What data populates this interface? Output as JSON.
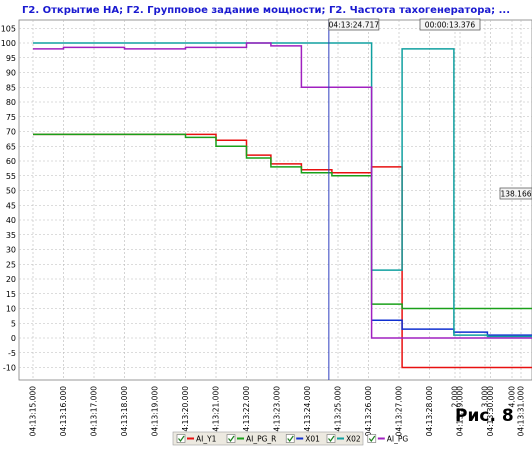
{
  "chart_data": {
    "type": "line",
    "title": "Г2. Открытие НА; Г2. Групповое задание мощности; Г2. Частота тахогенератора; ...",
    "y_ticks": [
      105,
      100,
      95,
      90,
      85,
      80,
      75,
      70,
      65,
      60,
      55,
      50,
      45,
      40,
      35,
      30,
      25,
      20,
      15,
      10,
      5,
      0,
      -5,
      -10
    ],
    "ylim": [
      -12,
      107
    ],
    "xlim": [
      0,
      17.6
    ],
    "x_ticks": [
      {
        "x": 0,
        "label": "04:13:15.000"
      },
      {
        "x": 1,
        "label": "04:13:16.000"
      },
      {
        "x": 2,
        "label": "04:13:17.000"
      },
      {
        "x": 3,
        "label": "04:13:18.000"
      },
      {
        "x": 4,
        "label": "04:13:19.000"
      },
      {
        "x": 5,
        "label": "04:13:20.000"
      },
      {
        "x": 6,
        "label": "04:13:21.000"
      },
      {
        "x": 7,
        "label": "04:13:22.000"
      },
      {
        "x": 8,
        "label": "04:13:23.000"
      },
      {
        "x": 9,
        "label": "04:13:24.000"
      },
      {
        "x": 10,
        "label": "04:13:25.000"
      },
      {
        "x": 11,
        "label": "04:13:26.000"
      },
      {
        "x": 12,
        "label": "04:13:27.000"
      },
      {
        "x": 13,
        "label": "04:13:28.000"
      },
      {
        "x": 14,
        "label": "04:13:29.000"
      },
      {
        "x": 15,
        "label": "04:13:30.000"
      },
      {
        "x": 16,
        "label": "04:13:31.000"
      },
      {
        "x": 16.1,
        "label": "2.000"
      },
      {
        "x": 16.2,
        "label": "3.000"
      },
      {
        "x": 16.3,
        "label": "4.000"
      }
    ],
    "cursor": {
      "x": 9.7,
      "label": "04:13:24.717"
    },
    "delta_label": "00:00:13.376",
    "value_label": "138.166",
    "series": [
      {
        "name": "AI_Y1",
        "color": "#e81010",
        "points": [
          [
            0,
            69
          ],
          [
            5,
            69
          ],
          [
            5,
            69
          ],
          [
            6,
            69
          ],
          [
            6,
            67
          ],
          [
            7,
            67
          ],
          [
            7,
            62
          ],
          [
            7.8,
            62
          ],
          [
            7.8,
            59
          ],
          [
            8.8,
            59
          ],
          [
            8.8,
            57
          ],
          [
            9.8,
            57
          ],
          [
            9.8,
            56
          ],
          [
            11.1,
            56
          ],
          [
            11.1,
            58
          ],
          [
            12.1,
            58
          ],
          [
            12.1,
            -10
          ],
          [
            17.6,
            -10
          ]
        ]
      },
      {
        "name": "AI_PG_R",
        "color": "#1aa01a",
        "points": [
          [
            0,
            69
          ],
          [
            5,
            69
          ],
          [
            5,
            68
          ],
          [
            6,
            68
          ],
          [
            6,
            65
          ],
          [
            7,
            65
          ],
          [
            7,
            61
          ],
          [
            7.8,
            61
          ],
          [
            7.8,
            58
          ],
          [
            8.8,
            58
          ],
          [
            8.8,
            56
          ],
          [
            9.8,
            56
          ],
          [
            9.8,
            55
          ],
          [
            11.1,
            55
          ],
          [
            11.1,
            11.5
          ],
          [
            12.1,
            11.5
          ],
          [
            12.1,
            10
          ],
          [
            17.6,
            10
          ]
        ]
      },
      {
        "name": "X01",
        "color": "#1030d0",
        "points": [
          [
            11.1,
            6
          ],
          [
            12.1,
            6
          ],
          [
            12.1,
            3
          ],
          [
            13.8,
            3
          ],
          [
            13.8,
            2
          ],
          [
            14.9,
            2
          ],
          [
            14.9,
            1
          ],
          [
            17.6,
            1
          ]
        ]
      },
      {
        "name": "X02",
        "color": "#10a0a0",
        "points": [
          [
            0,
            100
          ],
          [
            5,
            100
          ],
          [
            10,
            100
          ],
          [
            11.1,
            100
          ],
          [
            11.1,
            23
          ],
          [
            12.1,
            23
          ],
          [
            12.1,
            98
          ],
          [
            13.8,
            98
          ],
          [
            13.8,
            1
          ],
          [
            14.9,
            1
          ],
          [
            14.9,
            0.5
          ],
          [
            17.6,
            0.5
          ]
        ]
      },
      {
        "name": "AI_PG",
        "color": "#a020c0",
        "points": [
          [
            0,
            98
          ],
          [
            1,
            98
          ],
          [
            1,
            98.5
          ],
          [
            3,
            98.5
          ],
          [
            3,
            98
          ],
          [
            5,
            98
          ],
          [
            5,
            98.5
          ],
          [
            7,
            98.5
          ],
          [
            7,
            100
          ],
          [
            7.8,
            100
          ],
          [
            7.8,
            99
          ],
          [
            8.8,
            99
          ],
          [
            8.8,
            85
          ],
          [
            11.1,
            85
          ],
          [
            11.1,
            0
          ],
          [
            17.6,
            0
          ]
        ]
      }
    ],
    "grid": true,
    "legend": "bottom-center"
  },
  "figure_label": "Рис. 8"
}
